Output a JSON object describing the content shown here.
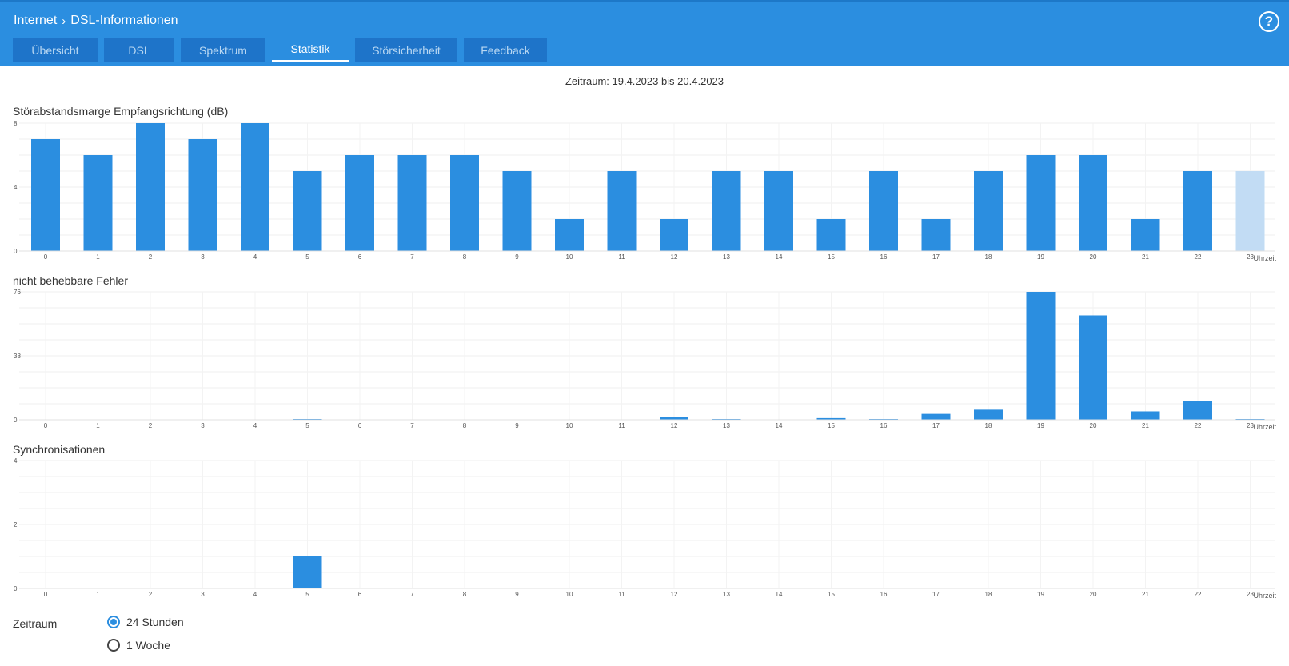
{
  "header": {
    "breadcrumb": [
      "Internet",
      "DSL-Informationen"
    ],
    "help_label": "?"
  },
  "tabs": [
    {
      "label": "Übersicht",
      "active": false
    },
    {
      "label": "DSL",
      "active": false
    },
    {
      "label": "Spektrum",
      "active": false
    },
    {
      "label": "Statistik",
      "active": true
    },
    {
      "label": "Störsicherheit",
      "active": false
    },
    {
      "label": "Feedback",
      "active": false
    }
  ],
  "period_text": "Zeitraum: 19.4.2023 bis 20.4.2023",
  "colors": {
    "accent": "#2b8ee0",
    "bar": "#2b8ee0",
    "bar_current": "#c2dcf4",
    "tab_bg": "#1e74c9"
  },
  "chart_data": [
    {
      "type": "bar",
      "title": "Störabstandsmarge Empfangsrichtung (dB)",
      "xlabel": "Uhrzeit",
      "categories": [
        "0",
        "1",
        "2",
        "3",
        "4",
        "5",
        "6",
        "7",
        "8",
        "9",
        "10",
        "11",
        "12",
        "13",
        "14",
        "15",
        "16",
        "17",
        "18",
        "19",
        "20",
        "21",
        "22",
        "23"
      ],
      "values": [
        7,
        6,
        8,
        7,
        8,
        5,
        6,
        6,
        6,
        5,
        2,
        5,
        2,
        5,
        5,
        2,
        5,
        2,
        5,
        6,
        6,
        2,
        5,
        5
      ],
      "ylim": [
        0,
        8
      ],
      "yticks": [
        "0",
        "4",
        "8"
      ],
      "grid": true
    },
    {
      "type": "bar",
      "title": "nicht behebbare Fehler",
      "xlabel": "Uhrzeit",
      "categories": [
        "0",
        "1",
        "2",
        "3",
        "4",
        "5",
        "6",
        "7",
        "8",
        "9",
        "10",
        "11",
        "12",
        "13",
        "14",
        "15",
        "16",
        "17",
        "18",
        "19",
        "20",
        "21",
        "22",
        "23"
      ],
      "values": [
        0,
        0,
        0,
        0,
        0,
        0.3,
        0,
        0,
        0,
        0,
        0,
        0,
        1.5,
        0.3,
        0,
        1,
        0.3,
        3.5,
        6,
        76,
        62,
        5,
        11,
        0.3
      ],
      "ylim": [
        0,
        76
      ],
      "yticks": [
        "0",
        "38",
        "76"
      ],
      "grid": true
    },
    {
      "type": "bar",
      "title": "Synchronisationen",
      "xlabel": "Uhrzeit",
      "categories": [
        "0",
        "1",
        "2",
        "3",
        "4",
        "5",
        "6",
        "7",
        "8",
        "9",
        "10",
        "11",
        "12",
        "13",
        "14",
        "15",
        "16",
        "17",
        "18",
        "19",
        "20",
        "21",
        "22",
        "23"
      ],
      "values": [
        0,
        0,
        0,
        0,
        0,
        1,
        0,
        0,
        0,
        0,
        0,
        0,
        0,
        0,
        0,
        0,
        0,
        0,
        0,
        0,
        0,
        0,
        0,
        0
      ],
      "ylim": [
        0,
        4
      ],
      "yticks": [
        "0",
        "2",
        "4"
      ],
      "grid": true
    }
  ],
  "period_select": {
    "label": "Zeitraum",
    "options": [
      {
        "label": "24 Stunden",
        "checked": true
      },
      {
        "label": "1 Woche",
        "checked": false
      }
    ]
  }
}
